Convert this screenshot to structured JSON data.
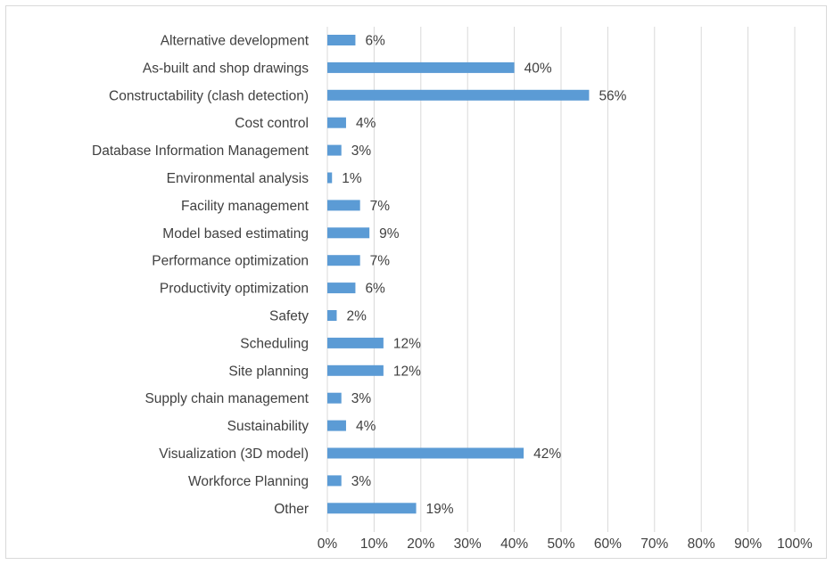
{
  "chart_data": {
    "type": "bar",
    "orientation": "horizontal",
    "categories": [
      "Alternative development",
      "As-built and shop drawings",
      "Constructability (clash detection)",
      "Cost control",
      "Database Information Management",
      "Environmental analysis",
      "Facility management",
      "Model based estimating",
      "Performance optimization",
      "Productivity optimization",
      "Safety",
      "Scheduling",
      "Site planning",
      "Supply chain management",
      "Sustainability",
      "Visualization (3D model)",
      "Workforce Planning",
      "Other"
    ],
    "values": [
      6,
      40,
      56,
      4,
      3,
      1,
      7,
      9,
      7,
      6,
      2,
      12,
      12,
      3,
      4,
      42,
      3,
      19
    ],
    "data_labels": [
      "6%",
      "40%",
      "56%",
      "4%",
      "3%",
      "1%",
      "7%",
      "9%",
      "7%",
      "6%",
      "2%",
      "12%",
      "12%",
      "3%",
      "4%",
      "42%",
      "3%",
      "19%"
    ],
    "xlim": [
      0,
      100
    ],
    "x_ticks": [
      "0%",
      "10%",
      "20%",
      "30%",
      "40%",
      "50%",
      "60%",
      "70%",
      "80%",
      "90%",
      "100%"
    ],
    "grid": true,
    "bar_color": "#5b9bd5",
    "grid_color": "#d9d9d9",
    "title": "",
    "xlabel": "",
    "ylabel": ""
  }
}
